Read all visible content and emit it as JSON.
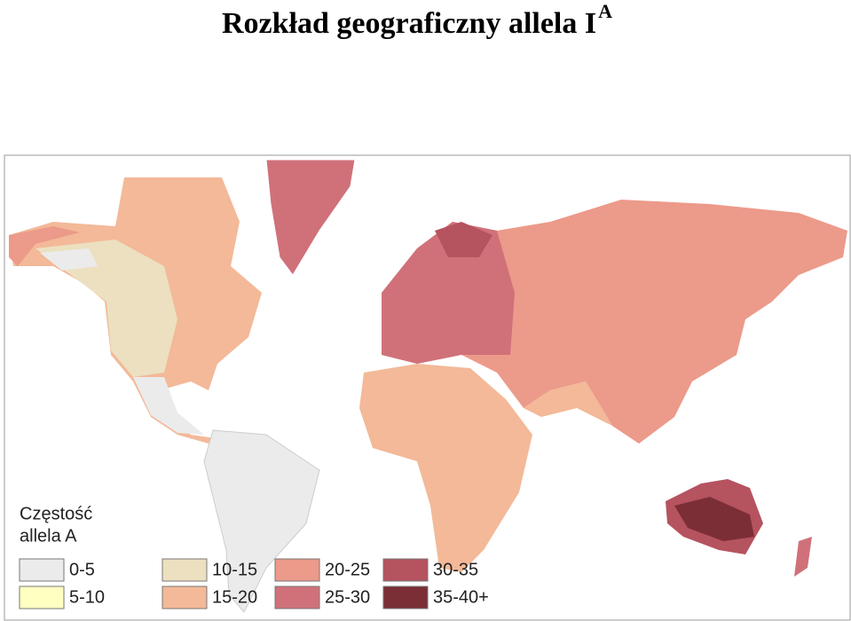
{
  "title": {
    "text": "Rozkład geograficzny allela I",
    "superscript": "A"
  },
  "legend": {
    "title": [
      "Częstość",
      "allela A"
    ],
    "items": [
      {
        "label": "0-5",
        "color": "#ebebeb"
      },
      {
        "label": "5-10",
        "color": "#ffffc2"
      },
      {
        "label": "10-15",
        "color": "#ece0c0"
      },
      {
        "label": "15-20",
        "color": "#f3b998"
      },
      {
        "label": "20-25",
        "color": "#ec9a8a"
      },
      {
        "label": "25-30",
        "color": "#d0717a"
      },
      {
        "label": "30-35",
        "color": "#b5535f"
      },
      {
        "label": "35-40+",
        "color": "#7b2e36"
      }
    ]
  }
}
